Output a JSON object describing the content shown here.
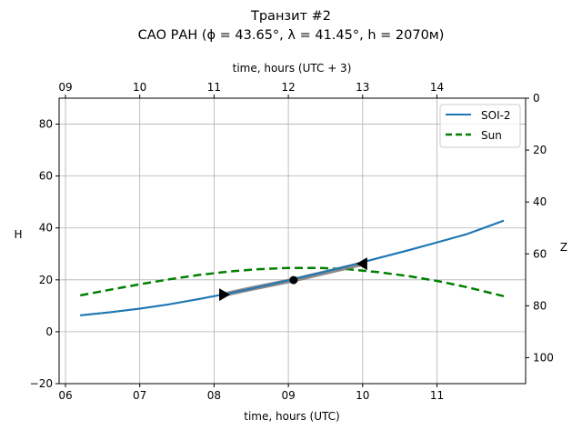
{
  "chart_data": {
    "type": "line",
    "title": "Транзит #2",
    "subtitle": "САО РАН (ϕ = 43.65°, λ = 41.45°, h = 2070м)",
    "xlabel": "time, hours (UTC)",
    "xlabel_top": "time, hours (UTC + 3)",
    "ylabel": "H",
    "ylabel_right": "Z",
    "xlim": [
      5.9,
      12.25
    ],
    "ylim": [
      -20,
      90
    ],
    "ylim_right": [
      0,
      110
    ],
    "x_ticks": [
      6,
      7,
      8,
      9,
      10,
      11
    ],
    "x_tick_labels": [
      "06",
      "07",
      "08",
      "09",
      "10",
      "11"
    ],
    "x_top_ticks": [
      9,
      10,
      11,
      12,
      13,
      14
    ],
    "x_top_tick_labels": [
      "09",
      "10",
      "11",
      "12",
      "13",
      "14"
    ],
    "y_ticks": [
      -20,
      0,
      20,
      40,
      60,
      80
    ],
    "y_tick_labels": [
      "−20",
      "0",
      "20",
      "40",
      "60",
      "80"
    ],
    "y_right_ticks": [
      0,
      20,
      40,
      60,
      80,
      100
    ],
    "y_right_tick_labels": [
      "0",
      "20",
      "40",
      "60",
      "80",
      "100"
    ],
    "grid": true,
    "legend": "top-right",
    "series": [
      {
        "name": "SOI-2",
        "color": "#1f77b4",
        "style": "solid",
        "x": [
          6.2,
          6.6,
          7.0,
          7.4,
          7.8,
          8.2,
          8.6,
          9.0,
          9.4,
          9.8,
          10.2,
          10.6,
          11.0,
          11.4,
          11.9
        ],
        "y": [
          6.3,
          7.5,
          8.9,
          10.6,
          12.6,
          14.8,
          17.2,
          19.8,
          22.5,
          25.3,
          28.3,
          31.3,
          34.4,
          37.6,
          42.8
        ]
      },
      {
        "name": "Sun",
        "color": "#008000",
        "style": "dashed",
        "x": [
          6.2,
          6.6,
          7.0,
          7.4,
          7.8,
          8.2,
          8.6,
          9.0,
          9.4,
          9.8,
          10.2,
          10.6,
          11.0,
          11.4,
          11.9
        ],
        "y": [
          14.0,
          16.2,
          18.3,
          20.2,
          21.9,
          23.2,
          24.1,
          24.6,
          24.6,
          24.1,
          23.0,
          21.5,
          19.6,
          17.2,
          13.7
        ]
      }
    ],
    "transit": {
      "color": "#808080",
      "x": [
        8.13,
        8.5,
        9.07,
        9.6,
        10.0
      ],
      "y": [
        14.3,
        16.6,
        19.9,
        23.5,
        26.2
      ],
      "start": {
        "x": 8.13,
        "y": 14.3,
        "marker": "triangle-right"
      },
      "mid": {
        "x": 9.07,
        "y": 19.9,
        "marker": "circle"
      },
      "end": {
        "x": 10.0,
        "y": 26.2,
        "marker": "triangle-left"
      }
    }
  }
}
